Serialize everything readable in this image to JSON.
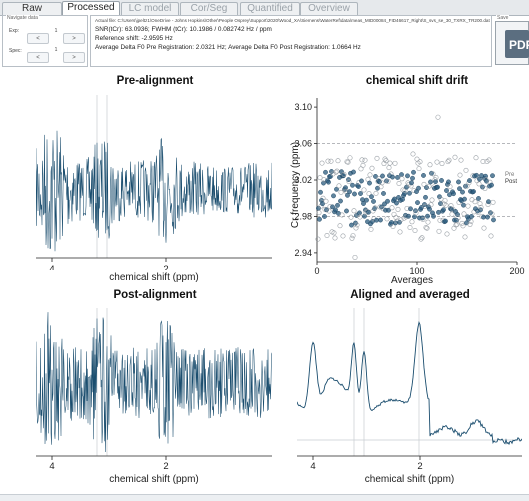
{
  "tabs": [
    {
      "label": "Raw",
      "state": "inactive"
    },
    {
      "label": "Processed",
      "state": "active"
    },
    {
      "label": "LC model",
      "state": "disabled"
    },
    {
      "label": "Cor/Seg",
      "state": "disabled"
    },
    {
      "label": "Quantified",
      "state": "disabled"
    },
    {
      "label": "Overview",
      "state": "disabled"
    }
  ],
  "navigate": {
    "title": "Navigate data",
    "exp_label": "Exp:",
    "subspec_label": "Spec:",
    "exp_value": "1",
    "subspec_value": "1",
    "prev": "<",
    "next": ">"
  },
  "info": {
    "file_line": "Actual file: C:\\Users\\jpeltz1\\OneDrive - Johns Hopkins\\Other\\People Osprey\\Support\\2020\\Wood_XA\\Siemens\\WaterRef\\data\\meas_MID00084_FID46617_Right\\S_svs_se_30_TXRX_TR200.dat",
    "snr_line": "SNR(tCr): 63.0936; FWHM (tCr): 10.1986 / 0.082742 Hz / ppm",
    "refshift_line": "Reference shift: -2.9595 Hz",
    "delta_line": "Average Delta F0 Pre Registration: 2.0321 Hz; Average Delta F0 Post Registration: 1.0664 Hz"
  },
  "save": {
    "title": "Save",
    "label": "PDF"
  },
  "plots": {
    "pre_title": "Pre-alignment",
    "post_title": "Post-alignment",
    "drift_title": "chemical shift drift",
    "avg_title": "Aligned and averaged",
    "xlabel": "chemical shift (ppm)",
    "ppm_ticks": [
      "4",
      "2"
    ],
    "drift_xlabel": "Averages",
    "drift_ylabel": "Cr frequency (ppm)",
    "legend_pre": "Pre",
    "legend_post": "Post"
  },
  "chart_data": [
    {
      "type": "line",
      "title": "Pre-alignment",
      "xlabel": "chemical shift (ppm)",
      "x_ticks": [
        "4",
        "2"
      ],
      "xlim": [
        4.3,
        0.2
      ]
    },
    {
      "type": "scatter",
      "title": "chemical shift drift",
      "xlabel": "Averages",
      "ylabel": "Cr frequency (ppm)",
      "xlim": [
        0,
        200
      ],
      "ylim": [
        2.93,
        3.11
      ],
      "x_ticks": [
        0,
        100,
        200
      ],
      "y_ticks": [
        2.94,
        2.98,
        3.02,
        3.06,
        3.1
      ],
      "reference_lines": [
        3.06,
        2.98
      ],
      "series": [
        {
          "name": "Pre"
        },
        {
          "name": "Post"
        }
      ],
      "legend": "right"
    },
    {
      "type": "line",
      "title": "Post-alignment",
      "xlabel": "chemical shift (ppm)",
      "x_ticks": [
        "4",
        "2"
      ],
      "xlim": [
        4.3,
        0.2
      ]
    },
    {
      "type": "line",
      "title": "Aligned and averaged",
      "xlabel": "chemical shift (ppm)",
      "x_ticks": [
        "4",
        "2"
      ],
      "xlim": [
        4.3,
        0.2
      ]
    }
  ]
}
